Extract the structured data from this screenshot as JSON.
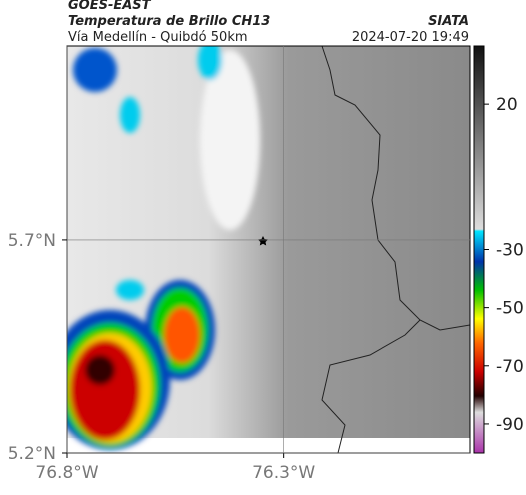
{
  "header": {
    "source": "GOES-EAST",
    "product": "Temperatura de Brillo CH13",
    "agency": "SIATA",
    "route": "Vía Medellín - Quibdó 50km",
    "timestamp": "2024-07-20 19:49"
  },
  "map": {
    "xlim": [
      -76.8,
      -75.87
    ],
    "ylim": [
      5.2,
      6.155
    ],
    "xticks": [
      {
        "value": -76.8,
        "label": "76.8°W"
      },
      {
        "value": -76.3,
        "label": "76.3°W"
      }
    ],
    "yticks": [
      {
        "value": 5.2,
        "label": "5.2°N"
      },
      {
        "value": 5.7,
        "label": "5.7°N"
      }
    ],
    "grid": true
  },
  "colorbar": {
    "clim": [
      -100,
      40
    ],
    "ticks": [
      20,
      -30,
      -50,
      -70,
      -90
    ]
  }
}
